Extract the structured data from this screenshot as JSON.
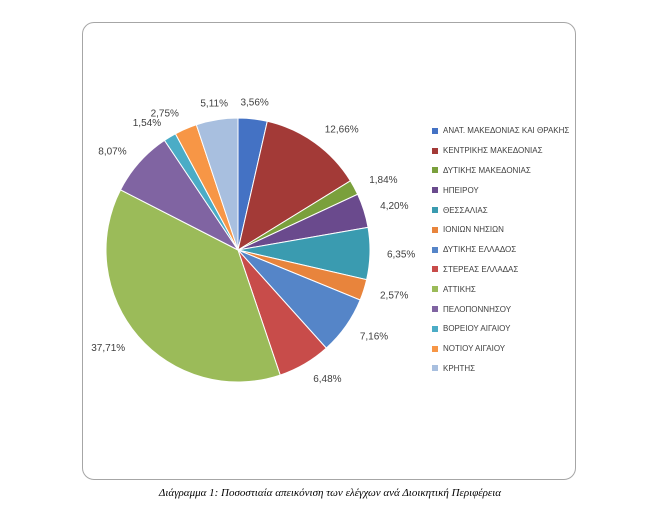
{
  "caption": "Διάγραμμα 1: Ποσοστιαία απεικόνιση των ελέγχων ανά Διοικητική Περιφέρεια",
  "chart_data": {
    "type": "pie",
    "title": "",
    "categories": [
      "ΑΝΑΤ. ΜΑΚΕΔΟΝΙΑΣ ΚΑΙ ΘΡΑΚΗΣ",
      "ΚΕΝΤΡΙΚΗΣ ΜΑΚΕΔΟΝΙΑΣ",
      "ΔΥΤΙΚΗΣ ΜΑΚΕΔΟΝΙΑΣ",
      "ΗΠΕΙΡΟΥ",
      "ΘΕΣΣΑΛΙΑΣ",
      "ΙΟΝΙΩΝ ΝΗΣΙΩΝ",
      "ΔΥΤΙΚΗΣ ΕΛΛΑΔΟΣ",
      "ΣΤΕΡΕΑΣ ΕΛΛΑΔΑΣ",
      "ΑΤΤΙΚΗΣ",
      "ΠΕΛΟΠΟΝΝΗΣΟΥ",
      "ΒΟΡΕΙΟΥ ΑΙΓΑΙΟΥ",
      "ΝΟΤΙΟΥ ΑΙΓΑΙΟΥ",
      "ΚΡΗΤΗΣ"
    ],
    "values": [
      3.56,
      12.66,
      1.84,
      4.2,
      6.35,
      2.57,
      7.16,
      6.48,
      37.71,
      8.07,
      1.54,
      2.75,
      5.11
    ],
    "labels": [
      "3,56%",
      "12,66%",
      "1,84%",
      "4,20%",
      "6,35%",
      "2,57%",
      "7,16%",
      "6,48%",
      "37,71%",
      "8,07%",
      "1,54%",
      "2,75%",
      "5,11%"
    ],
    "colors": [
      "#4472c4",
      "#a33a37",
      "#7aa03c",
      "#6a4a8d",
      "#3a9bb0",
      "#e8843c",
      "#5585c8",
      "#c84c4a",
      "#9bbb59",
      "#8064a2",
      "#4bacc6",
      "#f79646",
      "#a8bfdf"
    ],
    "legend_position": "right"
  }
}
